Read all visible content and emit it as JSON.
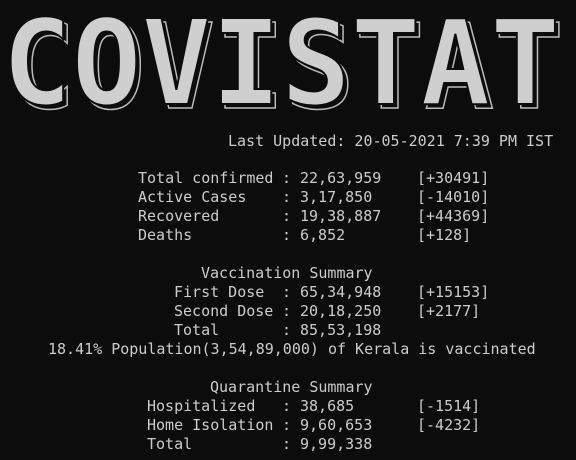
{
  "banner": "COVISTAT",
  "last_updated": "Last Updated: 20-05-2021 7:39 PM IST",
  "separator": ":",
  "stats": [
    {
      "label": "Total confirmed",
      "value": "22,63,959",
      "change": "[+30491]"
    },
    {
      "label": "Active Cases",
      "value": "3,17,850",
      "change": "[-14010]"
    },
    {
      "label": "Recovered",
      "value": "19,38,887",
      "change": "[+44369]"
    },
    {
      "label": "Deaths",
      "value": "6,852",
      "change": "[+128]"
    }
  ],
  "vaccination": {
    "title": "Vaccination Summary",
    "rows": [
      {
        "label": "First Dose",
        "value": "65,34,948",
        "change": "[+15153]"
      },
      {
        "label": "Second Dose",
        "value": "20,18,250",
        "change": "[+2177]"
      },
      {
        "label": "Total",
        "value": "85,53,198"
      }
    ],
    "note": "18.41% Population(3,54,89,000) of Kerala is vaccinated"
  },
  "quarantine": {
    "title": "Quarantine Summary",
    "rows": [
      {
        "label": "Hospitalized",
        "value": "38,685",
        "change": "[-1514]"
      },
      {
        "label": "Home Isolation",
        "value": "9,60,653",
        "change": "[-4232]"
      },
      {
        "label": "Total",
        "value": "9,99,338"
      }
    ]
  }
}
